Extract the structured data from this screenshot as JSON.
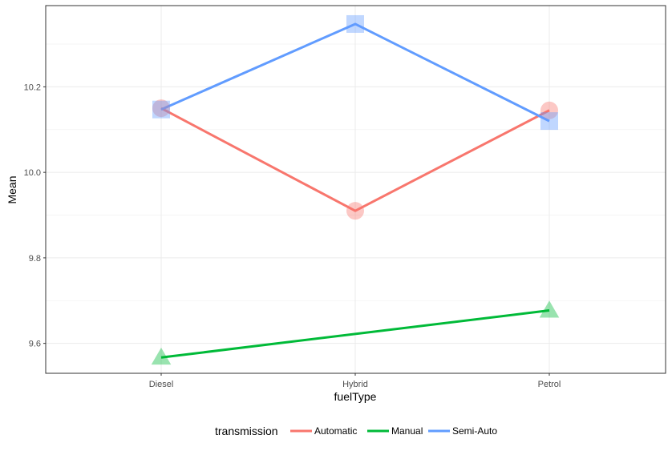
{
  "chart_data": {
    "type": "line",
    "xlabel": "fuelType",
    "ylabel": "Mean",
    "categories": [
      "Diesel",
      "Hybrid",
      "Petrol"
    ],
    "ylim": [
      9.53,
      10.39
    ],
    "yticks": [
      9.6,
      9.8,
      10.0,
      10.2
    ],
    "ytick_labels": [
      "9.6",
      "9.8",
      "10.0",
      "10.2"
    ],
    "grid": true,
    "legend": {
      "title": "transmission",
      "position": "bottom"
    },
    "series": [
      {
        "name": "Automatic",
        "color": "#F8766D",
        "marker": "circle",
        "values": [
          10.15,
          9.91,
          10.145
        ]
      },
      {
        "name": "Manual",
        "color": "#00BA38",
        "marker": "triangle",
        "values": [
          9.567,
          null,
          9.677
        ]
      },
      {
        "name": "Semi-Auto",
        "color": "#619CFF",
        "marker": "square",
        "values": [
          10.147,
          10.347,
          10.12
        ]
      }
    ]
  }
}
